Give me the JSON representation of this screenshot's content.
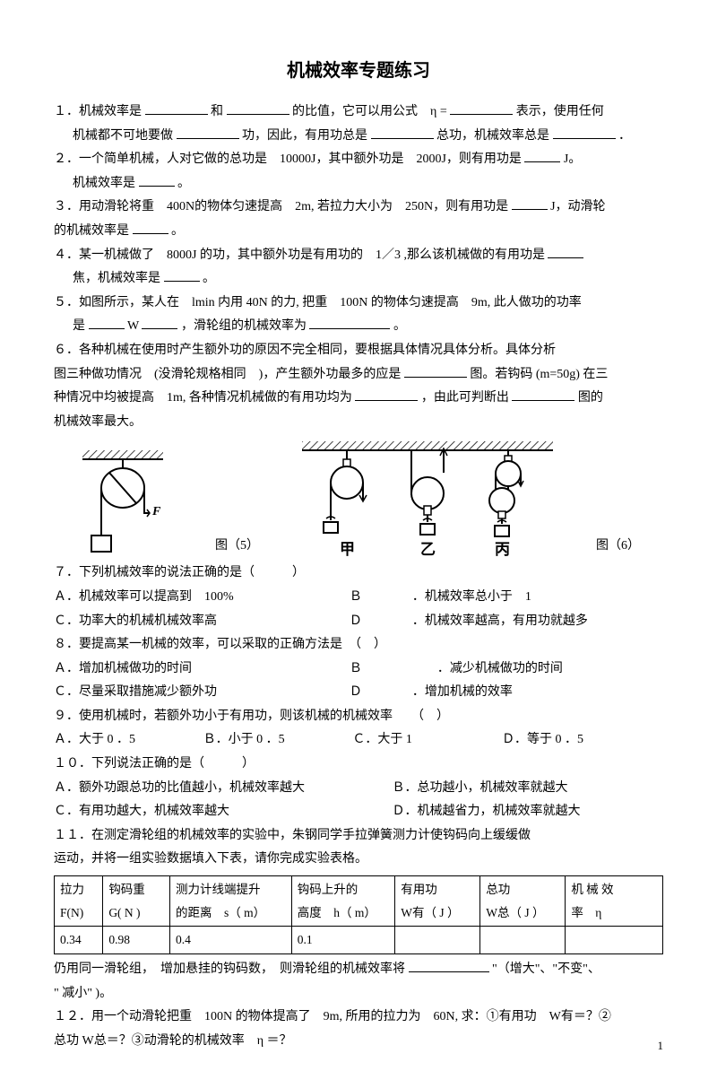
{
  "title": "机械效率专题练习",
  "q1a": "１．机械效率是",
  "q1b": "和",
  "q1c": "的比值，它可以用公式　η =",
  "q1d": "表示，使用任何",
  "q1e": "机械都不可地要做",
  "q1f": "功，因此，有用功总是",
  "q1g": "总功，机械效率总是",
  "q1h": "．",
  "q2a": "２．一个简单机械，人对它做的总功是　10000J，其中额外功是　2000J，则有用功是",
  "q2b": "J。",
  "q2c": "机械效率是",
  "q2d": "。",
  "q3a": "３．用动滑轮将重　400N的物体匀速提高　2m, 若拉力大小为　250N，则有用功是",
  "q3b": "J，动滑轮",
  "q3c": "的机械效率是",
  "q3d": "。",
  "q4a": "４．某一机械做了　8000J 的功，其中额外功是有用功的　1／3 ,那么该机械做的有用功是",
  "q4b": "焦，机械效率是",
  "q4c": "。",
  "q5a": "５．如图所示，某人在　lmin 内用 40N 的力, 把重　100N 的物体匀速提高　9m, 此人做功的功率",
  "q5b": "是",
  "q5c": "W",
  "q5d": "，滑轮组的机械效率为",
  "q5e": "。",
  "q6a": "６．各种机械在使用时产生额外功的原因不完全相同，要根据具体情况具体分析。具体分析",
  "q6b": "图三种做功情况　(没滑轮规格相同　)，产生额外功最多的应是",
  "q6c": "图。若钩码 (m=50g) 在三",
  "q6d": "种情况中均被提高　1m, 各种情况机械做的有用功均为",
  "q6e": "，由此可判断出",
  "q6f": "图的",
  "q6g": "机械效率最大。",
  "fig5_label": "图（5）",
  "fig6_label": "图（6）",
  "fig6_a": "甲",
  "fig6_b": "乙",
  "fig6_c": "丙",
  "q7": "７．下列机械效率的说法正确的是（　　　）",
  "q7a": "Ａ．机械效率可以提高到　100%",
  "q7b": "Ｂ　　　　．机械效率总小于　1",
  "q7c": "Ｃ．功率大的机械机械效率高",
  "q7d": "Ｄ　　　　．机械效率越高，有用功就越多",
  "q8": "８．要提高某一机械的效率，可以采取的正确方法是　（　）",
  "q8a": "Ａ．增加机械做功的时间",
  "q8b": "Ｂ　　　　　　．减少机械做功的时间",
  "q8c": "Ｃ．尽量采取措施减少额外功",
  "q8d": "Ｄ　　　　．增加机械的效率",
  "q9": "９．使用机械时，若额外功小于有用功，则该机械的机械效率　　（　）",
  "q9a": "Ａ．大于 0 ．5",
  "q9b": "Ｂ．小于 0 ．5",
  "q9c": "Ｃ．大于 1",
  "q9d": "Ｄ．等于 0 ．5",
  "q10": "１０．下列说法正确的是（　　　）",
  "q10a": "Ａ．额外功跟总功的比值越小，机械效率越大",
  "q10b": "Ｂ．总功越小，机械效率就越大",
  "q10c": "Ｃ．有用功越大，机械效率越大",
  "q10d": "Ｄ．机械越省力，机械效率就越大",
  "q11a": "１１．在测定滑轮组的机械效率的实验中，朱钢同学手拉弹簧测力计使钩码向上缓缓做",
  "q11b": "运动，并将一组实验数据填入下表，请你完成实验表格。",
  "q11c": "仍用同一滑轮组，　增加悬挂的钩码数，　则滑轮组的机械效率将",
  "q11d": "\"（增大\"、\"不变\"、",
  "q11e": "\" 减小\" )。",
  "q12a": "１２．用一个动滑轮把重　100N 的物体提高了　9m, 所用的拉力为　60N, 求：①有用功　W有＝？②",
  "q12b": "总功 W总＝？③动滑轮的机械效率　η ＝？",
  "table": {
    "headers": [
      "拉力\nF(N)",
      "钩码重\nG( N )",
      "测力计线端提升\n的距离　s（ m）",
      "钩码上升的\n高度　h（ m）",
      "有用功\nW有（ J ）",
      "总功\nW总（ J ）",
      "机 械 效\n率　η"
    ],
    "row": [
      "0.34",
      "0.98",
      "0.4",
      "0.1",
      "",
      "",
      ""
    ]
  },
  "pagenum": "1"
}
